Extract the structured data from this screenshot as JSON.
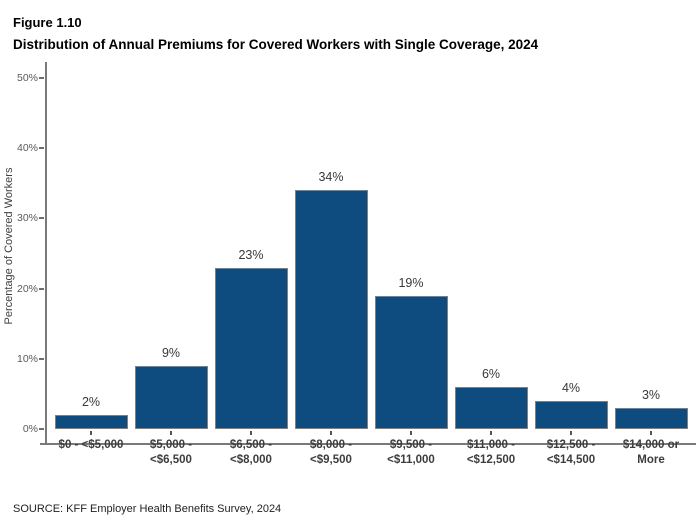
{
  "header": {
    "figure_label": "Figure 1.10",
    "title": "Distribution of Annual Premiums for Covered Workers with Single Coverage, 2024"
  },
  "chart_data": {
    "type": "bar",
    "title": "Distribution of Annual Premiums for Covered Workers with Single Coverage, 2024",
    "categories": [
      "$0 - <$5,000",
      "$5,000 -\n<$6,500",
      "$6,500 -\n<$8,000",
      "$8,000 -\n<$9,500",
      "$9,500 -\n<$11,000",
      "$11,000 -\n<$12,500",
      "$12,500 -\n<$14,500",
      "$14,000 or\nMore"
    ],
    "values": [
      2,
      9,
      23,
      34,
      19,
      6,
      4,
      3
    ],
    "value_labels": [
      "2%",
      "9%",
      "23%",
      "34%",
      "19%",
      "6%",
      "4%",
      "3%"
    ],
    "xlabel": "",
    "ylabel": "Percentage of Covered Workers",
    "ylim": [
      0,
      50
    ],
    "yticks": [
      0,
      10,
      20,
      30,
      40,
      50
    ],
    "ytick_labels": [
      "0%",
      "10%",
      "20%",
      "30%",
      "40%",
      "50%"
    ],
    "bar_color": "#0e4c7f",
    "bar_border_color": "#808080",
    "axis_color": "#7a7a7a",
    "grid": false,
    "legend": false
  },
  "footer": {
    "source": "SOURCE: KFF Employer Health Benefits Survey, 2024"
  }
}
